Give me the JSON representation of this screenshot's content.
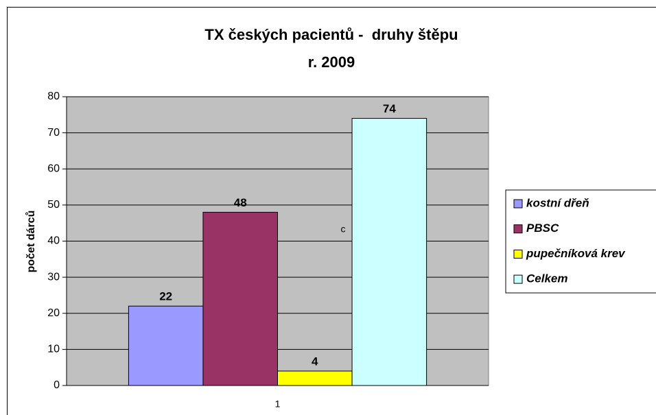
{
  "chart_data": {
    "type": "bar",
    "title": "TX českých pacientů -  druhy štěpu",
    "subtitle": "r. 2009",
    "y_label": "počet dárců",
    "annotation": "c",
    "categories": [
      "1"
    ],
    "series": [
      {
        "name": "kostní dřeň",
        "color": "#9999ff",
        "values": [
          22
        ]
      },
      {
        "name": "PBSC",
        "color": "#993366",
        "values": [
          48
        ]
      },
      {
        "name": "pupečníková krev",
        "color": "#ffff00",
        "values": [
          4
        ]
      },
      {
        "name": "Celkem",
        "color": "#ccffff",
        "values": [
          74
        ]
      }
    ],
    "ylim": [
      0,
      80
    ],
    "yticks": [
      0,
      10,
      20,
      30,
      40,
      50,
      60,
      70,
      80
    ],
    "grid": true,
    "plot_background": "#c0c0c0",
    "legend": "right"
  }
}
